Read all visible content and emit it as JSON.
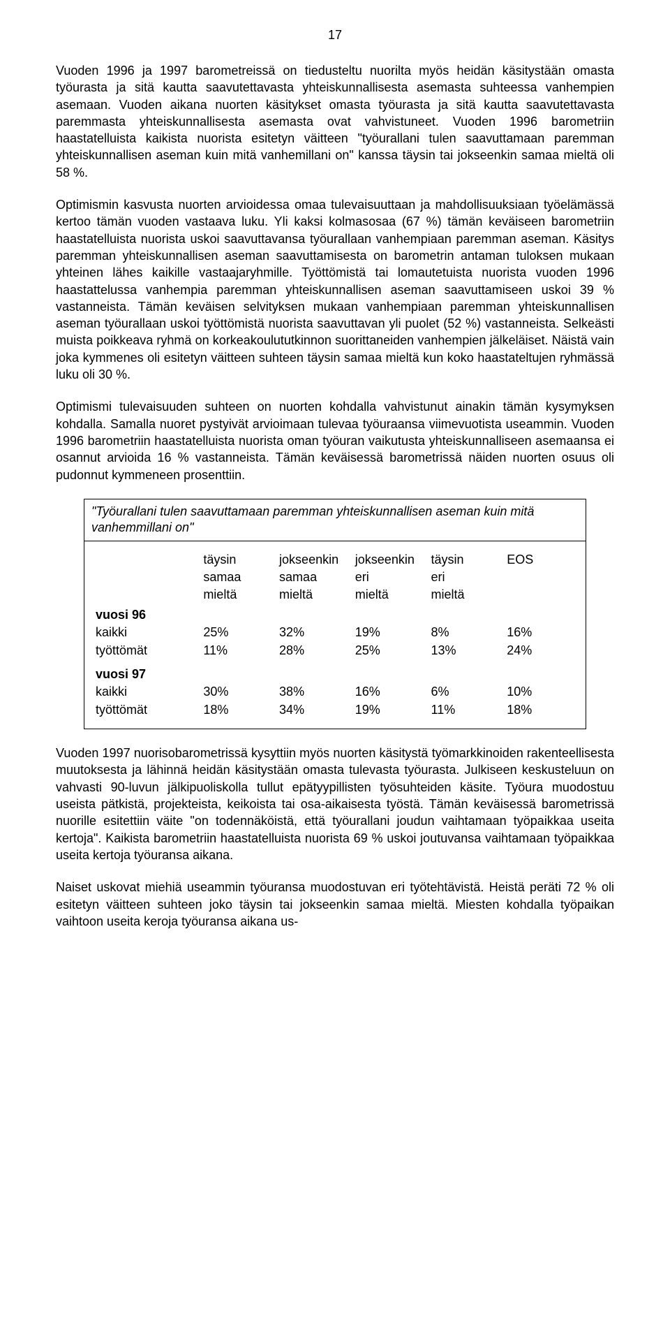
{
  "page_number": "17",
  "paragraphs": {
    "p1": "Vuoden 1996 ja 1997 barometreissä on tiedusteltu nuorilta myös heidän käsitystään omasta työurasta ja sitä kautta saavutettavasta yhteiskunnallisesta asemasta suhteessa vanhempien asemaan. Vuoden aikana nuorten käsitykset omasta työurasta ja sitä kautta saavutettavasta paremmasta yhteiskunnallisesta asemasta ovat vahvistuneet. Vuoden 1996 barometriin haastatelluista kaikista nuorista esitetyn väitteen \"työurallani tulen saavuttamaan paremman yhteiskunnallisen aseman kuin mitä vanhemillani on\" kanssa täysin tai jokseenkin samaa mieltä oli 58 %.",
    "p2": "Optimismin kasvusta nuorten arvioidessa omaa tulevaisuuttaan ja mahdollisuuksiaan työelämässä kertoo tämän vuoden vastaava luku. Yli kaksi kolmasosaa (67 %) tämän keväiseen barometriin haastatelluista nuorista uskoi saavuttavansa työurallaan vanhempiaan paremman aseman. Käsitys paremman yhteiskunnallisen aseman saavuttamisesta on barometrin antaman tuloksen mukaan yhteinen lähes kaikille vastaajaryhmille. Työttömistä tai lomautetuista nuorista vuoden 1996 haastattelussa vanhempia paremman yhteiskunnallisen aseman saavuttamiseen uskoi 39 % vastanneista. Tämän keväisen selvityksen mukaan vanhempiaan paremman yhteiskunnallisen aseman työurallaan uskoi työttömistä nuorista saavuttavan yli puolet (52 %) vastanneista. Selkeästi muista poikkeava ryhmä on korkeakoulututkinnon suorittaneiden vanhempien jälkeläiset. Näistä vain joka kymmenes oli esitetyn väitteen suhteen täysin samaa mieltä kun koko haastateltujen ryhmässä luku oli 30 %.",
    "p3": "Optimismi tulevaisuuden suhteen on nuorten kohdalla vahvistunut ainakin tämän kysymyksen kohdalla. Samalla nuoret pystyivät arvioimaan tulevaa työuraansa viimevuotista useammin. Vuoden 1996 barometriin haastatelluista nuorista oman työuran vaikutusta yhteiskunnalliseen asemaansa ei osannut arvioida 16 % vastanneista. Tämän keväisessä barometrissä näiden nuorten osuus oli pudonnut kymmeneen prosenttiin.",
    "p4": "Vuoden 1997 nuorisobarometrissä kysyttiin myös nuorten käsitystä työmarkkinoiden rakenteellisesta muutoksesta ja lähinnä heidän käsitystään omasta tulevasta työurasta. Julkiseen keskusteluun on vahvasti 90-luvun jälkipuoliskolla tullut epätyypillisten työsuhteiden käsite. Työura muodostuu useista pätkistä, projekteista, keikoista tai osa-aikaisesta työstä. Tämän keväisessä barometrissä nuorille esitettiin väite \"on todennäköistä, että työurallani joudun vaihtamaan työpaikkaa useita kertoja\". Kaikista barometriin haastatelluista nuorista 69 % uskoi joutuvansa vaihtamaan työpaikkaa useita kertoja työuransa aikana.",
    "p5": "Naiset uskovat miehiä useammin työuransa muodostuvan eri työtehtävistä. Heistä peräti 72 % oli esitetyn väitteen suhteen joko täysin tai jokseenkin samaa mieltä. Miesten kohdalla työpaikan vaihtoon useita keroja työuransa aikana us-"
  },
  "table": {
    "caption": "\"Työurallani tulen saavuttamaan paremman yhteiskunnallisen aseman kuin mitä vanhemmillani on\"",
    "headers": {
      "c1_l1": "täysin",
      "c1_l2": "samaa",
      "c1_l3": "mieltä",
      "c2_l1": "jokseenkin",
      "c2_l2": "samaa",
      "c2_l3": "mieltä",
      "c3_l1": "jokseenkin",
      "c3_l2": "eri",
      "c3_l3": "mieltä",
      "c4_l1": "täysin",
      "c4_l2": "eri",
      "c4_l3": "mieltä",
      "c5_l1": "EOS"
    },
    "year96": {
      "label": "vuosi 96",
      "rows": [
        {
          "label": "kaikki",
          "v": [
            "25%",
            "32%",
            "19%",
            "8%",
            "16%"
          ]
        },
        {
          "label": "työttömät",
          "v": [
            "11%",
            "28%",
            "25%",
            "13%",
            "24%"
          ]
        }
      ]
    },
    "year97": {
      "label": "vuosi 97",
      "rows": [
        {
          "label": "kaikki",
          "v": [
            "30%",
            "38%",
            "16%",
            "6%",
            "10%"
          ]
        },
        {
          "label": "työttömät",
          "v": [
            "18%",
            "34%",
            "19%",
            "11%",
            "18%"
          ]
        }
      ]
    }
  }
}
